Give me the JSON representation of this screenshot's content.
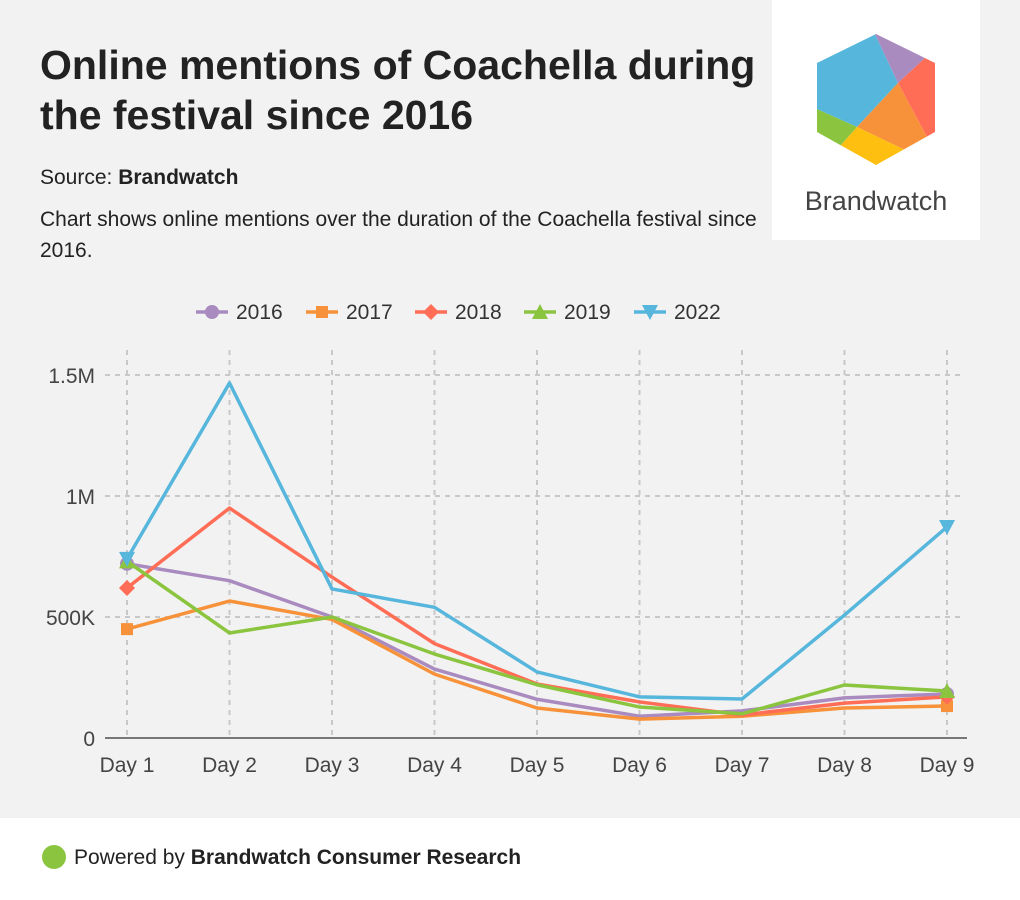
{
  "header": {
    "title": "Online mentions of Coachella during the festival since 2016",
    "source_label": "Source:",
    "source_name": "Brandwatch",
    "description": "Chart shows online mentions over the duration of the Coachella festival since 2016."
  },
  "logo": {
    "text": "Brandwatch"
  },
  "footer": {
    "prefix": "Powered by",
    "brand": "Brandwatch Consumer Research"
  },
  "chart_data": {
    "type": "line",
    "title": "Online mentions of Coachella during the festival since 2016",
    "xlabel": "",
    "ylabel": "",
    "categories": [
      "Day 1",
      "Day 2",
      "Day 3",
      "Day 4",
      "Day 5",
      "Day 6",
      "Day 7",
      "Day 8",
      "Day 9"
    ],
    "ylim": [
      0,
      1500000
    ],
    "yticks": [
      0,
      500000,
      1000000,
      1500000
    ],
    "ytick_labels": [
      "0",
      "500K",
      "1M",
      "1.5M"
    ],
    "grid": true,
    "legend_position": "top-center",
    "series": [
      {
        "name": "2016",
        "color": "#a98bbf",
        "marker": "circle",
        "values": [
          720000,
          650000,
          500000,
          285000,
          160000,
          90000,
          112000,
          166000,
          182000
        ]
      },
      {
        "name": "2017",
        "color": "#f7923a",
        "marker": "square",
        "values": [
          450000,
          566000,
          490000,
          264000,
          124000,
          78000,
          90000,
          124000,
          132000
        ]
      },
      {
        "name": "2018",
        "color": "#ff6d56",
        "marker": "diamond",
        "values": [
          620000,
          950000,
          665000,
          390000,
          223000,
          149000,
          95000,
          144000,
          170000
        ]
      },
      {
        "name": "2019",
        "color": "#8bc53f",
        "marker": "triangle-up",
        "values": [
          730000,
          434000,
          500000,
          347000,
          220000,
          128000,
          100000,
          219000,
          194000
        ]
      },
      {
        "name": "2022",
        "color": "#56b6dc",
        "marker": "triangle-down",
        "values": [
          740000,
          1467000,
          616000,
          540000,
          273000,
          170000,
          161000,
          508000,
          872000
        ]
      }
    ]
  }
}
